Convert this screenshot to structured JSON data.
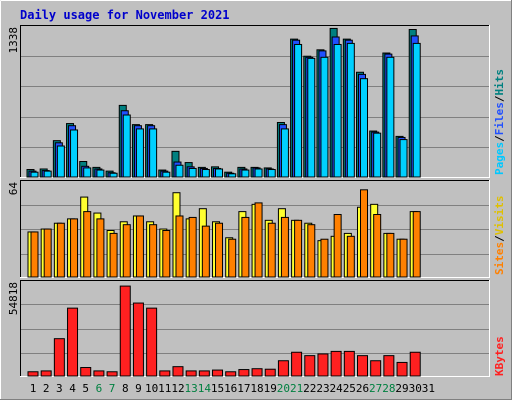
{
  "title": "Daily usage for November 2021",
  "colors": {
    "background": "#c0c0c0",
    "title": "#0000cc",
    "hits_front": "#00d0ff",
    "hits_back": "#008080",
    "files_back": "#2050ff",
    "pages_back": "#00c8ff",
    "visits": "#ffff30",
    "sites": "#ff8000",
    "kbytes": "#ff2020",
    "weekend_label": "#008040"
  },
  "chart_data": [
    {
      "type": "bar",
      "name": "hits-files-pages",
      "categories": [
        "1",
        "2",
        "3",
        "4",
        "5",
        "6",
        "7",
        "8",
        "9",
        "10",
        "11",
        "12",
        "13",
        "14",
        "15",
        "16",
        "17",
        "18",
        "19",
        "20",
        "21",
        "22",
        "23",
        "24",
        "25",
        "26",
        "27",
        "28",
        "29",
        "30",
        "31"
      ],
      "weekend_days": [
        "6",
        "7",
        "13",
        "14",
        "20",
        "21",
        "27",
        "28"
      ],
      "ymax_label": "1338",
      "ylim": [
        0,
        1338
      ],
      "legend": {
        "pages": "Pages",
        "files": "Files",
        "hits": "Hits",
        "sep": "/"
      },
      "series": [
        {
          "key": "hits",
          "values": [
            70,
            75,
            340,
            500,
            145,
            90,
            55,
            670,
            490,
            490,
            65,
            240,
            135,
            90,
            95,
            45,
            90,
            90,
            85,
            510,
            1290,
            1130,
            1190,
            1390,
            1290,
            980,
            430,
            1160,
            380,
            1380,
            0
          ]
        },
        {
          "key": "files",
          "values": [
            55,
            60,
            320,
            480,
            100,
            75,
            40,
            620,
            480,
            480,
            55,
            140,
            95,
            80,
            80,
            35,
            75,
            85,
            75,
            490,
            1280,
            1120,
            1180,
            1310,
            1280,
            960,
            420,
            1150,
            370,
            1320,
            0
          ]
        },
        {
          "key": "pages",
          "values": [
            45,
            55,
            290,
            440,
            85,
            65,
            35,
            580,
            450,
            450,
            45,
            110,
            80,
            70,
            75,
            30,
            65,
            75,
            70,
            450,
            1240,
            1110,
            1120,
            1240,
            1250,
            920,
            410,
            1120,
            350,
            1250,
            0
          ]
        }
      ]
    },
    {
      "type": "bar",
      "name": "visits-sites",
      "ymax_label": "64",
      "ylim": [
        0,
        64
      ],
      "legend": {
        "sites": "Sites",
        "visits": "Visits",
        "sep": "/"
      },
      "series": [
        {
          "key": "visits",
          "values": [
            31,
            33,
            37,
            40,
            55,
            44,
            32,
            38,
            42,
            38,
            33,
            58,
            40,
            47,
            38,
            27,
            45,
            50,
            39,
            47,
            39,
            37,
            25,
            28,
            30,
            48,
            50,
            30,
            26,
            45,
            0
          ]
        },
        {
          "key": "sites",
          "values": [
            31,
            33,
            37,
            40,
            45,
            40,
            30,
            36,
            42,
            36,
            32,
            42,
            41,
            35,
            37,
            26,
            41,
            51,
            37,
            41,
            39,
            36,
            26,
            43,
            28,
            60,
            43,
            30,
            26,
            45,
            0
          ]
        }
      ]
    },
    {
      "type": "bar",
      "name": "kbytes",
      "ymax_label": "54818",
      "ylim": [
        0,
        54818
      ],
      "legend": {
        "kbytes": "KBytes"
      },
      "series": [
        {
          "key": "kbytes",
          "values": [
            2500,
            3000,
            22000,
            40000,
            5000,
            3000,
            2500,
            53000,
            43000,
            40000,
            3000,
            5500,
            3000,
            3000,
            3500,
            2500,
            3800,
            4300,
            4000,
            9000,
            14000,
            12000,
            13000,
            14500,
            14500,
            12000,
            9000,
            12000,
            8000,
            14000,
            0
          ]
        }
      ]
    }
  ]
}
